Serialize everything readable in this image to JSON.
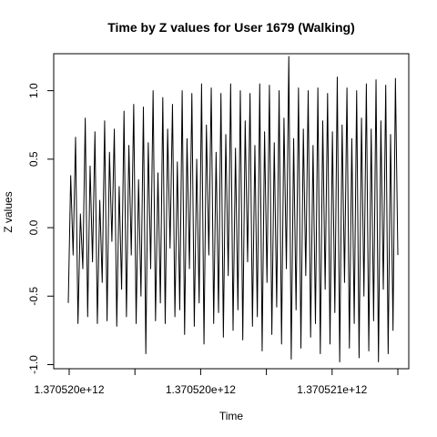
{
  "chart_data": {
    "type": "line",
    "title": "Time by Z values for User 1679 (Walking)",
    "xlabel": "Time",
    "ylabel": "Z values",
    "x_ticks": [
      {
        "label": "1.370520e+12",
        "shown": true
      },
      {
        "label": "",
        "shown": false
      },
      {
        "label": "1.370520e+12",
        "shown": true
      },
      {
        "label": "",
        "shown": false
      },
      {
        "label": "1.370521e+12",
        "shown": true
      },
      {
        "label": "",
        "shown": false
      }
    ],
    "y_ticks": [
      "-1.0",
      "-0.5",
      "0.0",
      "0.5",
      "1.0"
    ],
    "y_tick_values": [
      -1.0,
      -0.5,
      0.0,
      0.5,
      1.0
    ],
    "ylim": [
      -1.03,
      1.27
    ],
    "series": [
      {
        "color": "#000000",
        "values": [
          -0.55,
          0.38,
          -0.2,
          0.66,
          -0.7,
          0.1,
          -0.3,
          0.8,
          -0.65,
          0.45,
          -0.25,
          0.7,
          -0.7,
          0.2,
          -0.4,
          0.78,
          -0.68,
          0.55,
          -0.1,
          0.72,
          -0.72,
          0.3,
          -0.45,
          0.85,
          -0.65,
          0.6,
          -0.2,
          0.9,
          -0.7,
          0.35,
          -0.5,
          0.88,
          -0.92,
          0.62,
          -0.3,
          1.0,
          -0.68,
          0.4,
          -0.55,
          0.95,
          -0.7,
          0.72,
          -0.15,
          0.9,
          -0.65,
          0.48,
          -0.6,
          1.0,
          -0.78,
          0.65,
          -0.3,
          0.98,
          -0.72,
          0.5,
          -0.55,
          1.05,
          -0.85,
          0.75,
          -0.2,
          1.02,
          -0.7,
          0.55,
          -0.62,
          0.98,
          -0.8,
          0.68,
          -0.35,
          1.05,
          -0.75,
          0.58,
          -0.6,
          1.0,
          -0.82,
          0.78,
          -0.25,
          0.98,
          -0.72,
          0.6,
          -0.65,
          1.05,
          -0.9,
          0.7,
          -0.4,
          1.04,
          -0.78,
          0.62,
          -0.58,
          1.0,
          -0.85,
          0.8,
          -0.3,
          1.25,
          -0.96,
          0.65,
          -0.6,
          1.02,
          -0.88,
          0.72,
          -0.35,
          1.0,
          -0.8,
          0.6,
          -0.7,
          1.02,
          -0.92,
          0.78,
          -0.45,
          0.98,
          -0.85,
          0.7,
          -0.62,
          1.1,
          -0.98,
          0.75,
          -0.4,
          1.02,
          -0.88,
          0.65,
          -0.7,
          1.0,
          -0.95,
          0.8,
          -0.5,
          1.05,
          -0.9,
          0.72,
          -0.68,
          1.08,
          -0.98,
          0.78,
          -0.45,
          1.04,
          -0.92,
          0.68,
          -0.75,
          1.09,
          -0.2
        ]
      }
    ]
  }
}
